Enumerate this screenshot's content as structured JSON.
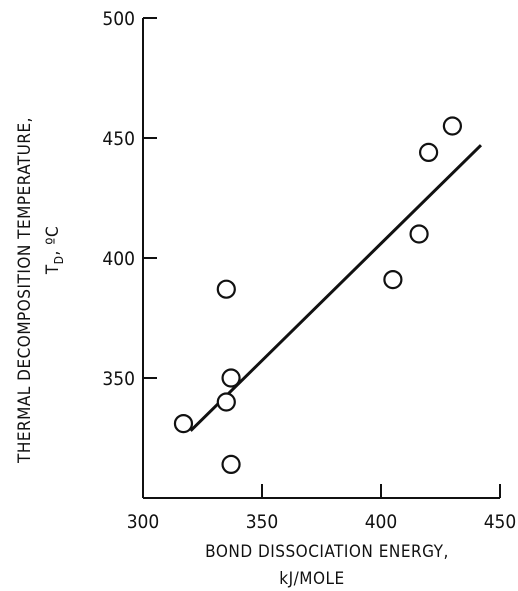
{
  "chart_data": {
    "type": "scatter",
    "xlabel_line1": "BOND DISSOCIATION ENERGY,",
    "xlabel_line2": "kJ/MOLE",
    "ylabel_line1": "THERMAL DECOMPOSITION TEMPERATURE,",
    "ylabel_line2": "T",
    "ylabel_sub": "D",
    "ylabel_unit": ", ºC",
    "xlim": [
      300,
      450
    ],
    "ylim": [
      300,
      500
    ],
    "x_ticks": [
      300,
      350,
      400,
      450
    ],
    "y_ticks": [
      350,
      400,
      450,
      500
    ],
    "x_tick_labels": [
      "300",
      "350",
      "400",
      "450"
    ],
    "y_tick_labels": [
      "350",
      "400",
      "450",
      "500"
    ],
    "grid": false,
    "points": [
      {
        "x": 317,
        "y": 331
      },
      {
        "x": 335,
        "y": 387
      },
      {
        "x": 335,
        "y": 340
      },
      {
        "x": 337,
        "y": 350
      },
      {
        "x": 337,
        "y": 314
      },
      {
        "x": 405,
        "y": 391
      },
      {
        "x": 416,
        "y": 410
      },
      {
        "x": 420,
        "y": 444
      },
      {
        "x": 430,
        "y": 455
      }
    ],
    "fit_line": {
      "x": [
        320,
        442
      ],
      "y": [
        328,
        447
      ]
    }
  }
}
